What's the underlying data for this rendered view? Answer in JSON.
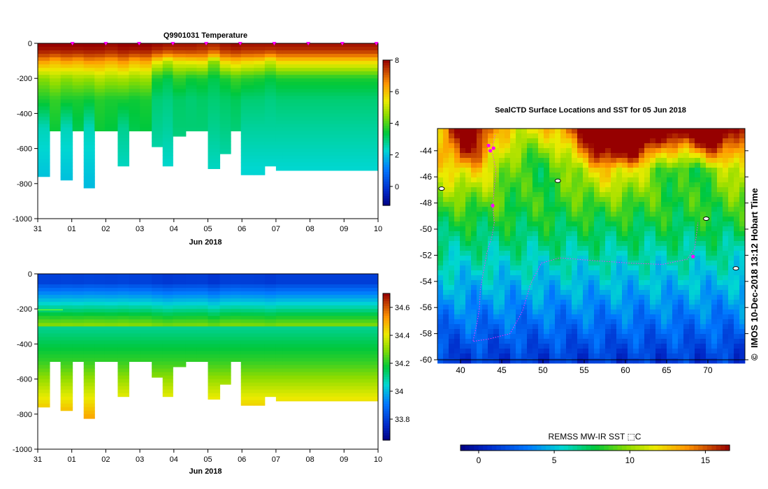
{
  "chart_data": [
    {
      "type": "heatmap",
      "title": "Q9901031  Temperature",
      "xlabel": "Jun 2018",
      "ylabel": "",
      "x_ticks": [
        "31",
        "01",
        "02",
        "03",
        "04",
        "05",
        "06",
        "07",
        "08",
        "09",
        "10"
      ],
      "y_ticks": [
        "0",
        "-200",
        "-400",
        "-600",
        "-800",
        "-1000"
      ],
      "ylim": [
        -1000,
        0
      ],
      "colorbar": {
        "ticks": [
          "8",
          "6",
          "4",
          "2",
          "0"
        ],
        "range": [
          -1.2,
          8
        ]
      },
      "profiles": [
        {
          "x": 0.0,
          "d": 760,
          "b": [
            8,
            6.5,
            4.5,
            3.6,
            2.5
          ]
        },
        {
          "x": 0.35,
          "d": 500,
          "b": [
            8,
            6.2,
            4.8,
            3.8,
            3.5
          ]
        },
        {
          "x": 0.67,
          "d": 780,
          "b": [
            8,
            6.5,
            4.5,
            3.6,
            2.5
          ]
        },
        {
          "x": 1.02,
          "d": 500,
          "b": [
            8,
            6.3,
            4.7,
            3.6,
            3.3
          ]
        },
        {
          "x": 1.35,
          "d": 825,
          "b": [
            8,
            6.6,
            4.6,
            3.5,
            2.5
          ]
        },
        {
          "x": 1.67,
          "d": 500,
          "b": [
            8,
            6.5,
            4.9,
            3.7,
            3.5
          ]
        },
        {
          "x": 1.97,
          "d": 500,
          "b": [
            7.9,
            6.3,
            4.7,
            3.6,
            3.4
          ]
        },
        {
          "x": 2.35,
          "d": 700,
          "b": [
            8,
            6.6,
            4.8,
            3.6,
            2.8
          ]
        },
        {
          "x": 2.68,
          "d": 500,
          "b": [
            8,
            6.2,
            4.6,
            3.5,
            3.3
          ]
        },
        {
          "x": 3.0,
          "d": 500,
          "b": [
            8,
            6.4,
            4.7,
            3.6,
            3.4
          ]
        },
        {
          "x": 3.35,
          "d": 590,
          "b": [
            7.9,
            5.6,
            3.6,
            3.0,
            2.8
          ]
        },
        {
          "x": 3.67,
          "d": 700,
          "b": [
            7.8,
            5.0,
            3.3,
            2.9,
            2.7
          ]
        },
        {
          "x": 3.97,
          "d": 530,
          "b": [
            7.8,
            5.5,
            3.8,
            3.1,
            3.0
          ]
        },
        {
          "x": 4.35,
          "d": 500,
          "b": [
            7.8,
            5.6,
            3.5,
            3.0,
            3.0
          ]
        },
        {
          "x": 4.67,
          "d": 500,
          "b": [
            7.7,
            5.7,
            3.6,
            3.1,
            3.0
          ]
        },
        {
          "x": 5.0,
          "d": 715,
          "b": [
            7.6,
            4.6,
            3.3,
            3.0,
            2.8
          ]
        },
        {
          "x": 5.35,
          "d": 630,
          "b": [
            7.8,
            5.8,
            3.6,
            3.1,
            2.9
          ]
        },
        {
          "x": 5.67,
          "d": 500,
          "b": [
            7.9,
            6.0,
            3.9,
            3.2,
            3.0
          ]
        },
        {
          "x": 5.97,
          "d": 750,
          "b": [
            7.8,
            5.8,
            3.7,
            3.0,
            2.7
          ]
        },
        {
          "x": 6.35,
          "d": 750,
          "b": [
            7.8,
            5.7,
            3.6,
            3.0,
            2.7
          ]
        },
        {
          "x": 6.67,
          "d": 700,
          "b": [
            7.8,
            5.2,
            3.4,
            2.9,
            2.7
          ]
        },
        {
          "x": 7.0,
          "d": 725,
          "b": [
            7.8,
            5.8,
            3.6,
            3.0,
            2.7
          ]
        },
        {
          "x": 7.2,
          "d": 725,
          "b": [
            7.8,
            5.8,
            3.6,
            3.0,
            2.7
          ]
        }
      ]
    },
    {
      "type": "heatmap",
      "title": "",
      "xlabel": "Jun 2018",
      "ylabel": "",
      "x_ticks": [
        "31",
        "01",
        "02",
        "03",
        "04",
        "05",
        "06",
        "07",
        "08",
        "09",
        "10"
      ],
      "y_ticks": [
        "0",
        "-200",
        "-400",
        "-600",
        "-800",
        "-1000"
      ],
      "ylim": [
        -1000,
        0
      ],
      "colorbar": {
        "ticks": [
          "34.6",
          "34.4",
          "34.2",
          "34",
          "33.8"
        ],
        "range": [
          33.65,
          34.7
        ]
      }
    },
    {
      "type": "heatmap",
      "title": "SealCTD Surface Locations and SST for 05 Jun 2018",
      "xlabel": "",
      "ylabel": "",
      "x_ticks": [
        "40",
        "45",
        "50",
        "55",
        "60",
        "65",
        "70"
      ],
      "y_ticks": [
        "-44",
        "-46",
        "-48",
        "-50",
        "-52",
        "-54",
        "-56",
        "-58",
        "-60"
      ],
      "xlim": [
        37.2,
        74.5
      ],
      "ylim": [
        -60,
        -42.3
      ],
      "colorbar": {
        "label": "REMSS MW-IR SST ⬚C",
        "ticks": [
          "0",
          "5",
          "10",
          "15"
        ],
        "range": [
          -1.2,
          16.6
        ]
      },
      "track": [
        [
          44.2,
          -42.8
        ],
        [
          43.8,
          -44
        ],
        [
          44.3,
          -45.5
        ],
        [
          44.1,
          -46.8
        ],
        [
          43.9,
          -48.3
        ],
        [
          44.1,
          -49.5
        ],
        [
          43.8,
          -50.6
        ],
        [
          43.2,
          -51.8
        ],
        [
          42.8,
          -53.2
        ],
        [
          42.4,
          -54.6
        ],
        [
          42.3,
          -56
        ],
        [
          42.0,
          -57.2
        ],
        [
          41.5,
          -58.6
        ],
        [
          43.5,
          -58.4
        ],
        [
          46.0,
          -58.0
        ],
        [
          47.5,
          -56.3
        ],
        [
          48.5,
          -54.2
        ],
        [
          49.8,
          -52.6
        ],
        [
          52.0,
          -52.2
        ],
        [
          56.0,
          -52.4
        ],
        [
          60.5,
          -52.6
        ],
        [
          64.5,
          -52.7
        ],
        [
          67.5,
          -52.3
        ],
        [
          68.4,
          -51.5
        ],
        [
          68.6,
          -50.5
        ],
        [
          68.8,
          -49.5
        ]
      ],
      "surfacings": [
        [
          43.4,
          -43.6
        ],
        [
          44.0,
          -43.8
        ],
        [
          43.6,
          -44.0
        ],
        [
          43.9,
          -48.2
        ],
        [
          68.2,
          -52.1
        ]
      ],
      "islands": [
        [
          37.7,
          -46.9
        ],
        [
          51.8,
          -46.3
        ],
        [
          69.8,
          -49.2
        ],
        [
          73.4,
          -53.0
        ]
      ]
    }
  ],
  "credit": {
    "text": "IMOS 10-Dec-2018 13:12 Hobart Time",
    "copyright_symbol": "©"
  }
}
